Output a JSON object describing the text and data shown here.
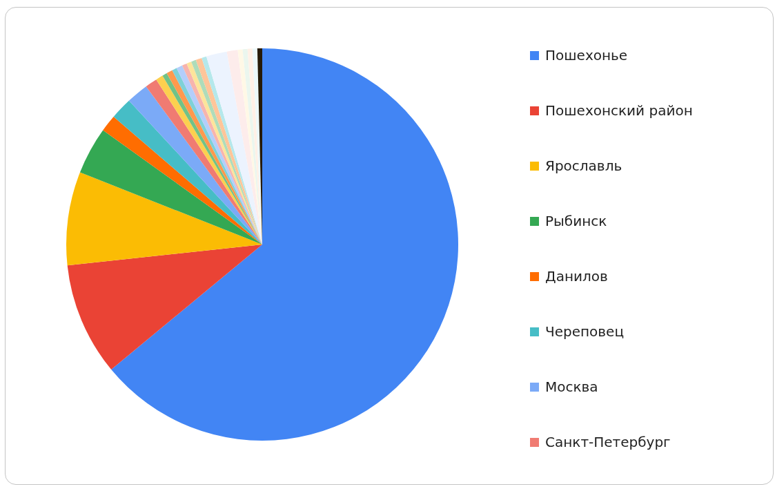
{
  "chart_data": {
    "type": "pie",
    "categories": [
      "Пошехонье",
      "Пошехонский район",
      "Ярославль",
      "Рыбинск",
      "Данилов",
      "Череповец",
      "Москва",
      "Санкт-Петербург",
      null,
      null,
      null,
      null,
      null,
      null,
      null,
      null,
      null,
      null,
      null,
      null,
      null,
      null,
      null,
      null,
      null
    ],
    "values": [
      64.0,
      9.3,
      7.7,
      3.9,
      1.4,
      1.8,
      1.8,
      1.0,
      0.6,
      0.4,
      0.5,
      0.4,
      0.5,
      0.4,
      0.4,
      0.4,
      0.5,
      0.4,
      1.7,
      0.9,
      0.4,
      0.4,
      0.4,
      0.4,
      0.4
    ],
    "colors": [
      "#4285f4",
      "#ea4335",
      "#fbbc04",
      "#34a853",
      "#ff6d01",
      "#46bdc6",
      "#7baaf7",
      "#f07b72",
      "#fcd04f",
      "#71c287",
      "#ff994d",
      "#7ed1d7",
      "#b3cefb",
      "#f7b4ae",
      "#fde49b",
      "#aedcba",
      "#ffc599",
      "#b5e8eb",
      "#ecf3fe",
      "#fdeceb",
      "#fff8e6",
      "#ebf6ee",
      "#fff0e6",
      "#ecf8f9",
      "#261a06"
    ],
    "legend": "right"
  }
}
